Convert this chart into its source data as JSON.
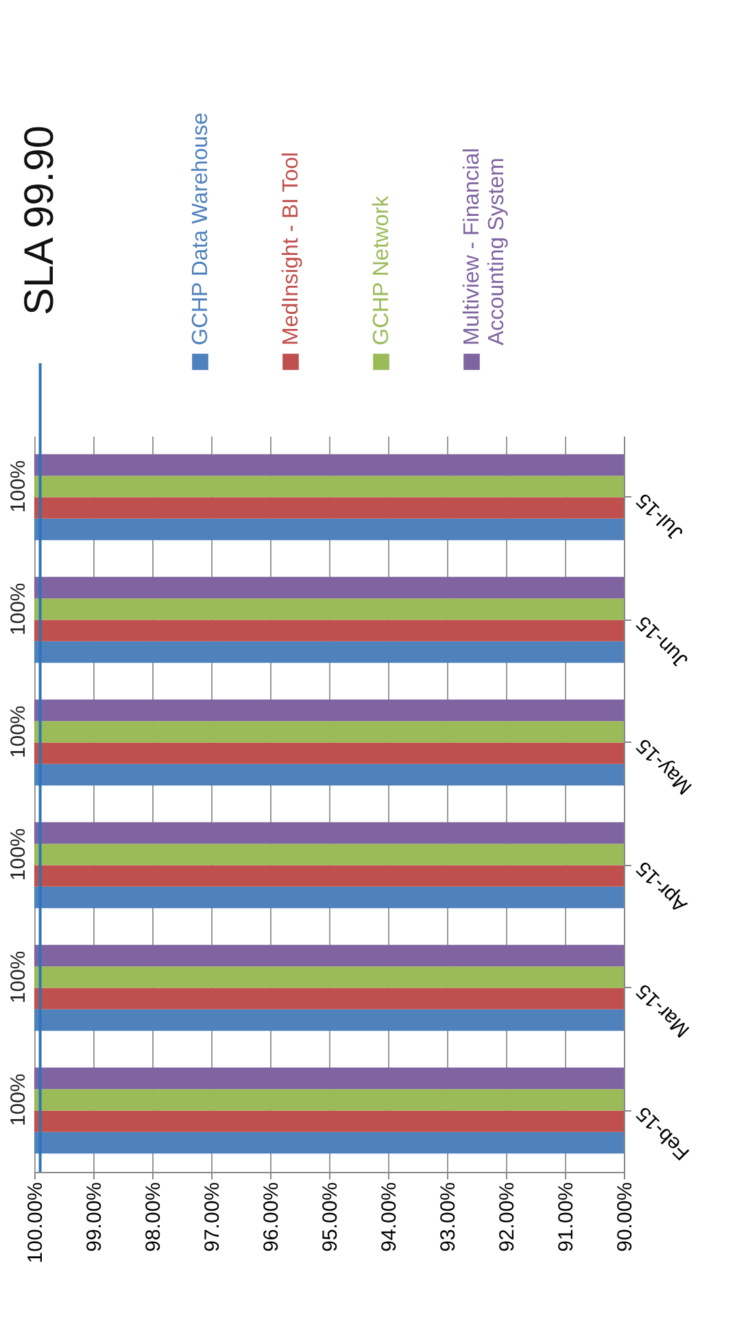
{
  "chart_data": {
    "type": "bar",
    "orientation": "horizontal",
    "categories": [
      "Jul-15",
      "Jun-15",
      "May-15",
      "Apr-15",
      "Mar-15",
      "Feb-15"
    ],
    "series": [
      {
        "name": "GCHP Data Warehouse",
        "color": "#4f81bd",
        "values": [
          100,
          100,
          100,
          100,
          100,
          100
        ]
      },
      {
        "name": "MedInsight - BI Tool",
        "color": "#c0504d",
        "values": [
          100,
          100,
          100,
          100,
          100,
          100
        ]
      },
      {
        "name": "GCHP Network",
        "color": "#9bbb59",
        "values": [
          100,
          100,
          100,
          100,
          100,
          100
        ],
        "value_labels": [
          "100%",
          "100%",
          "100%",
          "100%",
          "100%",
          "100%"
        ]
      },
      {
        "name": "Multiview - Financial Accounting System",
        "color": "#8064a2",
        "values": [
          100,
          100,
          100,
          100,
          100,
          100
        ]
      }
    ],
    "xlim": [
      100,
      90
    ],
    "xticks": [
      {
        "value": 100,
        "label": "100.00%"
      },
      {
        "value": 99,
        "label": "99.00%"
      },
      {
        "value": 98,
        "label": "98.00%"
      },
      {
        "value": 97,
        "label": "97.00%"
      },
      {
        "value": 96,
        "label": "96.00%"
      },
      {
        "value": 95,
        "label": "95.00%"
      },
      {
        "value": 94,
        "label": "94.00%"
      },
      {
        "value": 93,
        "label": "93.00%"
      },
      {
        "value": 92,
        "label": "92.00%"
      },
      {
        "value": 91,
        "label": "91.00%"
      },
      {
        "value": 90,
        "label": "90.00%"
      }
    ],
    "ref_lines": [
      {
        "axis": "x",
        "value": 99.9,
        "label": "SLA 99.90",
        "color": "#2e75b6"
      }
    ],
    "grid": "x",
    "legend": "top"
  }
}
